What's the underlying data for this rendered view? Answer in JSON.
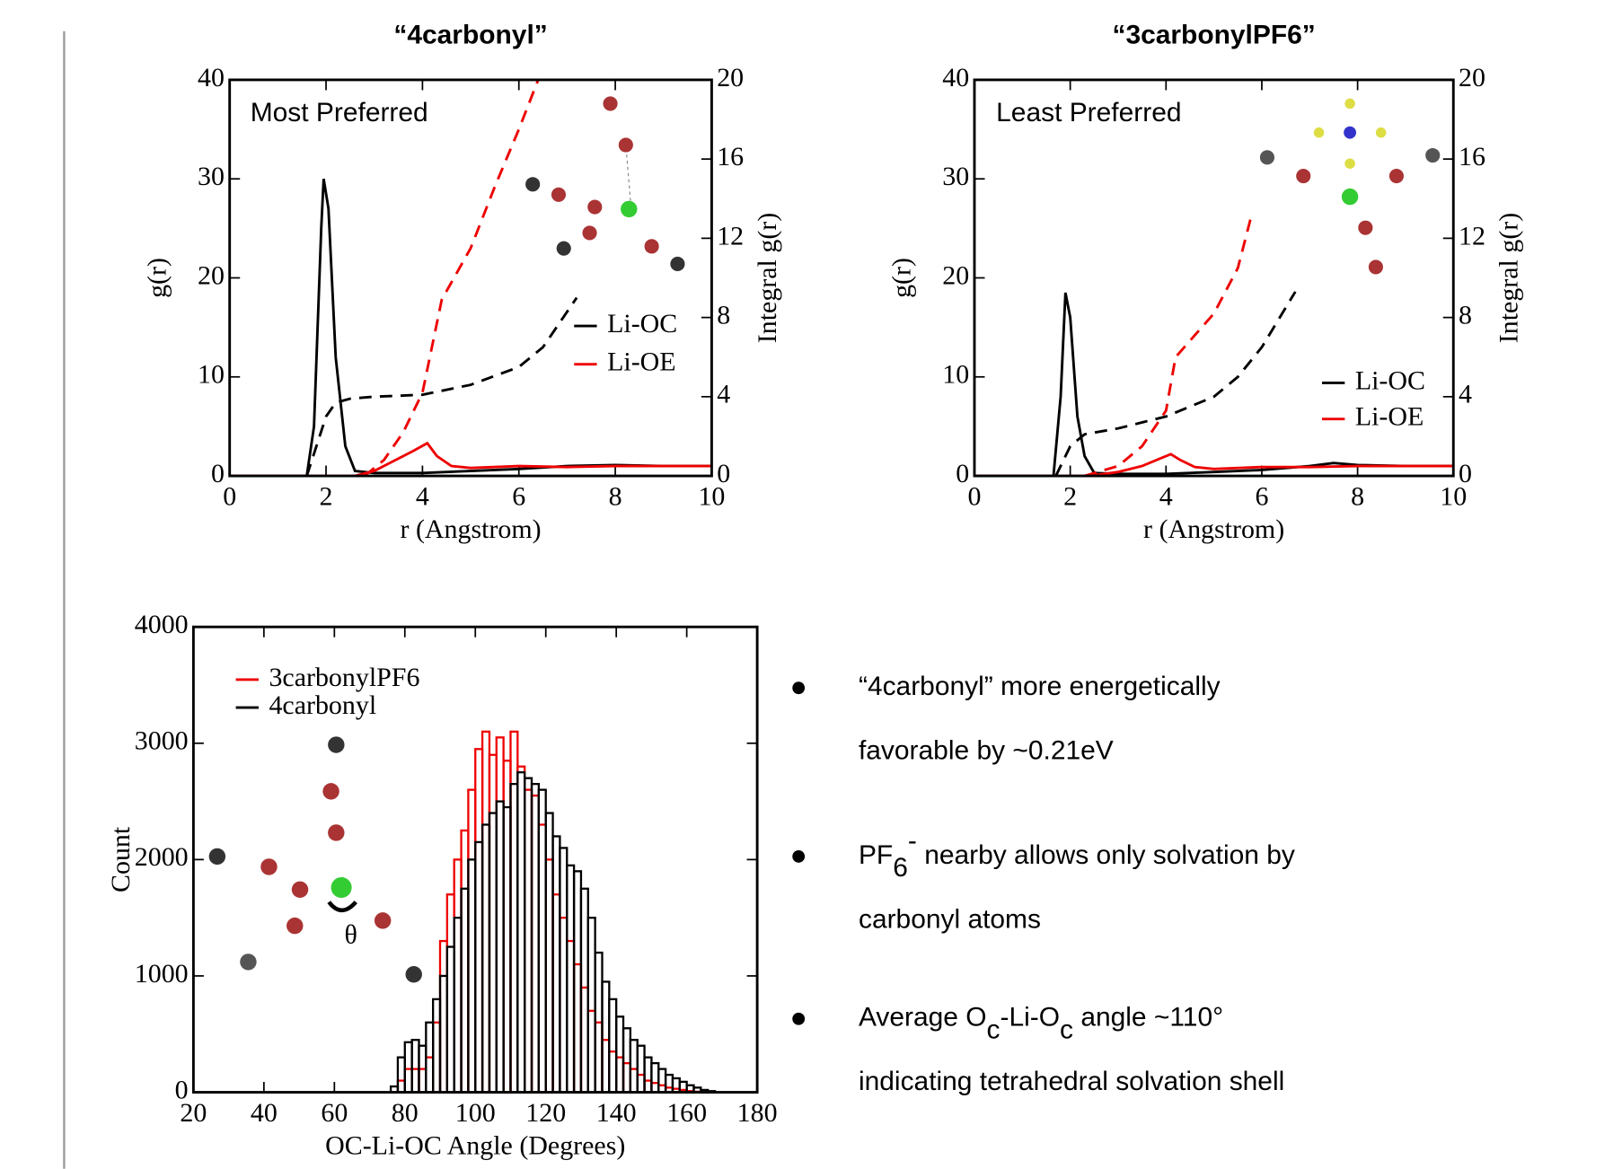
{
  "chart_data": [
    {
      "type": "line",
      "title": "“4carbonyl”",
      "title_color": "#ee2222",
      "annotation": "Most Preferred",
      "xlabel": "r (Angstrom)",
      "ylabel": "g(r)",
      "y2label": "Integral g(r)",
      "xlim": [
        0,
        10
      ],
      "xticks": [
        0,
        2,
        4,
        6,
        8,
        10
      ],
      "ylim": [
        0,
        40
      ],
      "yticks": [
        0,
        10,
        20,
        30,
        40
      ],
      "y2lim": [
        0,
        20
      ],
      "y2ticks": [
        0,
        4,
        8,
        12,
        16,
        20
      ],
      "series": [
        {
          "name": "Li-OC",
          "color": "#000000",
          "x": [
            0,
            1.6,
            1.75,
            1.9,
            1.95,
            2.05,
            2.2,
            2.4,
            2.6,
            3,
            4,
            5,
            6,
            7,
            8,
            9,
            10
          ],
          "values": [
            0,
            0,
            5,
            25,
            30,
            27,
            12,
            3,
            0.5,
            0.3,
            0.3,
            0.5,
            0.7,
            1,
            1.1,
            1,
            1
          ]
        },
        {
          "name": "Li-OE",
          "color": "#ee0000",
          "x": [
            0,
            2.6,
            3,
            3.4,
            3.8,
            4.1,
            4.3,
            4.6,
            5,
            6,
            7,
            8,
            9,
            10
          ],
          "values": [
            0,
            0,
            0.5,
            1.5,
            2.5,
            3.3,
            2,
            1,
            0.8,
            1,
            0.9,
            1,
            1,
            1
          ]
        },
        {
          "color": "#000000",
          "dash": true,
          "axis": "y2",
          "x": [
            1.6,
            1.8,
            2,
            2.2,
            2.5,
            3,
            4,
            5,
            6,
            6.5,
            7.2
          ],
          "values": [
            0,
            1.5,
            3,
            3.7,
            3.9,
            4,
            4.1,
            4.6,
            5.5,
            6.5,
            9
          ]
        },
        {
          "color": "#ee0000",
          "dash": true,
          "axis": "y2",
          "x": [
            2.8,
            3.2,
            3.6,
            4,
            4.4,
            5,
            5.5,
            6,
            6.4
          ],
          "values": [
            0,
            0.8,
            2.2,
            4.2,
            8.9,
            11.5,
            14.6,
            17.5,
            20
          ]
        }
      ]
    },
    {
      "type": "line",
      "title": "“3carbonylPF6”",
      "title_color": "#ee2222",
      "annotation": "Least Preferred",
      "xlabel": "r (Angstrom)",
      "ylabel": "g(r)",
      "y2label": "Integral g(r)",
      "xlim": [
        0,
        10
      ],
      "xticks": [
        0,
        2,
        4,
        6,
        8,
        10
      ],
      "ylim": [
        0,
        40
      ],
      "yticks": [
        0,
        10,
        20,
        30,
        40
      ],
      "y2lim": [
        0,
        20
      ],
      "y2ticks": [
        0,
        4,
        8,
        12,
        16,
        20
      ],
      "series": [
        {
          "name": "Li-OC",
          "color": "#000000",
          "x": [
            0,
            1.65,
            1.8,
            1.9,
            2,
            2.15,
            2.3,
            2.5,
            3,
            4,
            5,
            6,
            7,
            7.5,
            8,
            9,
            10
          ],
          "values": [
            0,
            0,
            8,
            18.5,
            16,
            6,
            2,
            0.3,
            0.2,
            0.2,
            0.4,
            0.6,
            1,
            1.3,
            1.1,
            1,
            1
          ]
        },
        {
          "name": "Li-OE",
          "color": "#ee0000",
          "x": [
            0,
            2.4,
            3,
            3.5,
            3.9,
            4.1,
            4.3,
            4.6,
            5,
            6,
            7,
            8,
            9,
            10
          ],
          "values": [
            0,
            0,
            0.4,
            1,
            1.8,
            2.2,
            1.6,
            0.9,
            0.7,
            0.9,
            0.9,
            1,
            1,
            1
          ]
        },
        {
          "color": "#000000",
          "dash": true,
          "axis": "y2",
          "x": [
            1.7,
            2,
            2.3,
            3,
            4,
            5,
            5.5,
            6,
            6.7
          ],
          "values": [
            0,
            1.5,
            2.1,
            2.4,
            3,
            4,
            5,
            6.5,
            9.3
          ]
        },
        {
          "color": "#ee0000",
          "dash": true,
          "axis": "y2",
          "x": [
            2.3,
            3,
            3.5,
            4,
            4.2,
            5,
            5.5,
            5.8
          ],
          "values": [
            0,
            0.5,
            1.5,
            3.3,
            6,
            8.2,
            10.5,
            13.3
          ]
        }
      ]
    },
    {
      "type": "histogram",
      "annotation": "θ",
      "xlabel": "OC-Li-OC Angle (Degrees)",
      "ylabel": "Count",
      "xlim": [
        20,
        180
      ],
      "xticks": [
        20,
        40,
        60,
        80,
        100,
        120,
        140,
        160,
        180
      ],
      "ylim": [
        0,
        4000
      ],
      "yticks": [
        0,
        1000,
        2000,
        3000,
        4000
      ],
      "bins": [
        76,
        78,
        80,
        82,
        84,
        86,
        88,
        90,
        92,
        94,
        96,
        98,
        100,
        102,
        104,
        106,
        108,
        110,
        112,
        114,
        116,
        118,
        120,
        122,
        124,
        126,
        128,
        130,
        132,
        134,
        136,
        138,
        140,
        142,
        144,
        146,
        148,
        150,
        152,
        154,
        156,
        158,
        160,
        162,
        164,
        166,
        168
      ],
      "series": [
        {
          "name": "3carbonylPF6",
          "color": "#ee0000",
          "values": [
            0,
            100,
            200,
            200,
            200,
            300,
            600,
            1300,
            1700,
            2000,
            2250,
            2600,
            2950,
            3100,
            2900,
            3050,
            2850,
            3100,
            2800,
            2600,
            2550,
            2300,
            2000,
            1700,
            1500,
            1300,
            1100,
            900,
            700,
            600,
            450,
            350,
            300,
            250,
            200,
            150,
            100,
            80,
            60,
            40,
            30,
            20,
            10,
            5,
            0,
            0
          ]
        },
        {
          "name": "4carbonyl",
          "color": "#000000",
          "values": [
            50,
            300,
            430,
            450,
            400,
            600,
            800,
            1000,
            1250,
            1500,
            1750,
            2000,
            2150,
            2300,
            2400,
            2500,
            2450,
            2650,
            2750,
            2700,
            2650,
            2600,
            2400,
            2200,
            2100,
            1950,
            1900,
            1750,
            1500,
            1200,
            950,
            800,
            650,
            550,
            450,
            400,
            300,
            250,
            200,
            150,
            120,
            90,
            60,
            40,
            20,
            10
          ]
        }
      ]
    }
  ],
  "bullets": [
    {
      "lines": [
        [
          {
            "text": "“4carbonyl” more energetically"
          }
        ],
        [
          {
            "text": "favorable by ~0.21eV"
          }
        ]
      ]
    },
    {
      "lines": [
        [
          {
            "text": "PF"
          },
          {
            "text": "6",
            "style": "sub"
          },
          {
            "text": "-",
            "style": "sup"
          },
          {
            "text": " nearby allows only solvation by"
          }
        ],
        [
          {
            "text": "carbonyl atoms"
          }
        ]
      ]
    },
    {
      "lines": [
        [
          {
            "text": "Average O"
          },
          {
            "text": "c",
            "style": "sub"
          },
          {
            "text": "-Li-O"
          },
          {
            "text": "c",
            "style": "sub"
          },
          {
            "text": " angle ~110°"
          }
        ],
        [
          {
            "text": "indicating tetrahedral solvation shell"
          }
        ]
      ]
    }
  ]
}
